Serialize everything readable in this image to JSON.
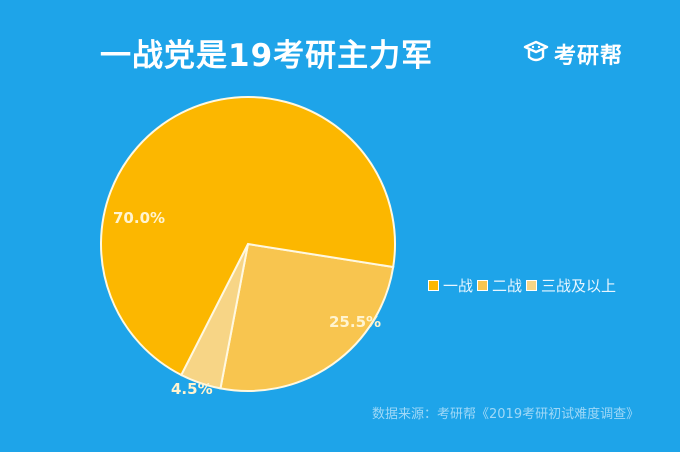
{
  "title": "一战党是19考研主力军",
  "logo": {
    "icon": "graduation-cap-icon",
    "text": "考研帮"
  },
  "chart_data": {
    "type": "pie",
    "title": "一战党是19考研主力军",
    "categories": [
      "一战",
      "二战",
      "三战及以上"
    ],
    "values": [
      70.0,
      25.5,
      4.5
    ],
    "labels": [
      "70.0%",
      "25.5%",
      "4.5%"
    ],
    "colors": [
      "#fcb700",
      "#f8c54f",
      "#f7d586"
    ],
    "legend_position": "right",
    "source": "数据来源：考研帮《2019考研初试难度调查》"
  },
  "legend": [
    {
      "label": "一战",
      "color": "#fcb700"
    },
    {
      "label": "二战",
      "color": "#f8c54f"
    },
    {
      "label": "三战及以上",
      "color": "#f7d586"
    }
  ],
  "source": "数据来源：考研帮《2019考研初试难度调查》"
}
